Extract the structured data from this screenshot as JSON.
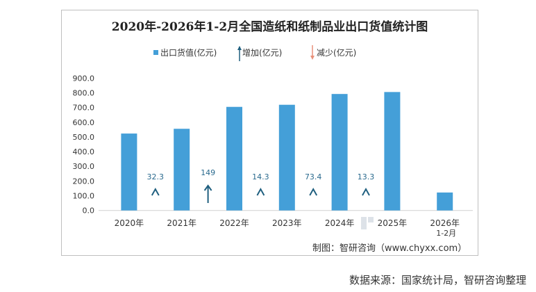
{
  "chart_data": {
    "type": "bar",
    "title": "2020年-2026年1-2月全国造纸和纸制品业出口货值统计图",
    "categories": [
      "2020年",
      "2021年",
      "2022年",
      "2023年",
      "2024年",
      "2025年",
      "2026年\n1-2月"
    ],
    "series": [
      {
        "name": "出口货值(亿元)",
        "values": [
          522.9,
          555.2,
          704.2,
          718.5,
          791.9,
          805.2,
          122.0
        ],
        "color": "#449fd8"
      }
    ],
    "changes": [
      {
        "between": [
          "2020年",
          "2021年"
        ],
        "label": "32.3",
        "direction": "up"
      },
      {
        "between": [
          "2021年",
          "2022年"
        ],
        "label": "149",
        "direction": "up"
      },
      {
        "between": [
          "2022年",
          "2023年"
        ],
        "label": "14.3",
        "direction": "up"
      },
      {
        "between": [
          "2023年",
          "2024年"
        ],
        "label": "73.4",
        "direction": "up"
      },
      {
        "between": [
          "2024年",
          "2025年"
        ],
        "label": "13.3",
        "direction": "up"
      }
    ],
    "legend": [
      {
        "label": "出口货值(亿元)",
        "color": "#449fd8",
        "marker": "square"
      },
      {
        "label": "增加(亿元)",
        "color": "#1f5f7f",
        "marker": "arrow-up"
      },
      {
        "label": "减少(亿元)",
        "color": "#e8907a",
        "marker": "arrow-down"
      }
    ],
    "legend_position": "top",
    "yticks": [
      "0.0",
      "100.0",
      "200.0",
      "300.0",
      "400.0",
      "500.0",
      "600.0",
      "700.0",
      "800.0",
      "900.0"
    ],
    "ylim": [
      0,
      900
    ],
    "grid": false
  },
  "credit": "制图：智研咨询（www.chyxx.com）",
  "source": "数据来源：国家统计局，智研咨询整理",
  "watermark": "智研咨询 www.chyxx.com"
}
